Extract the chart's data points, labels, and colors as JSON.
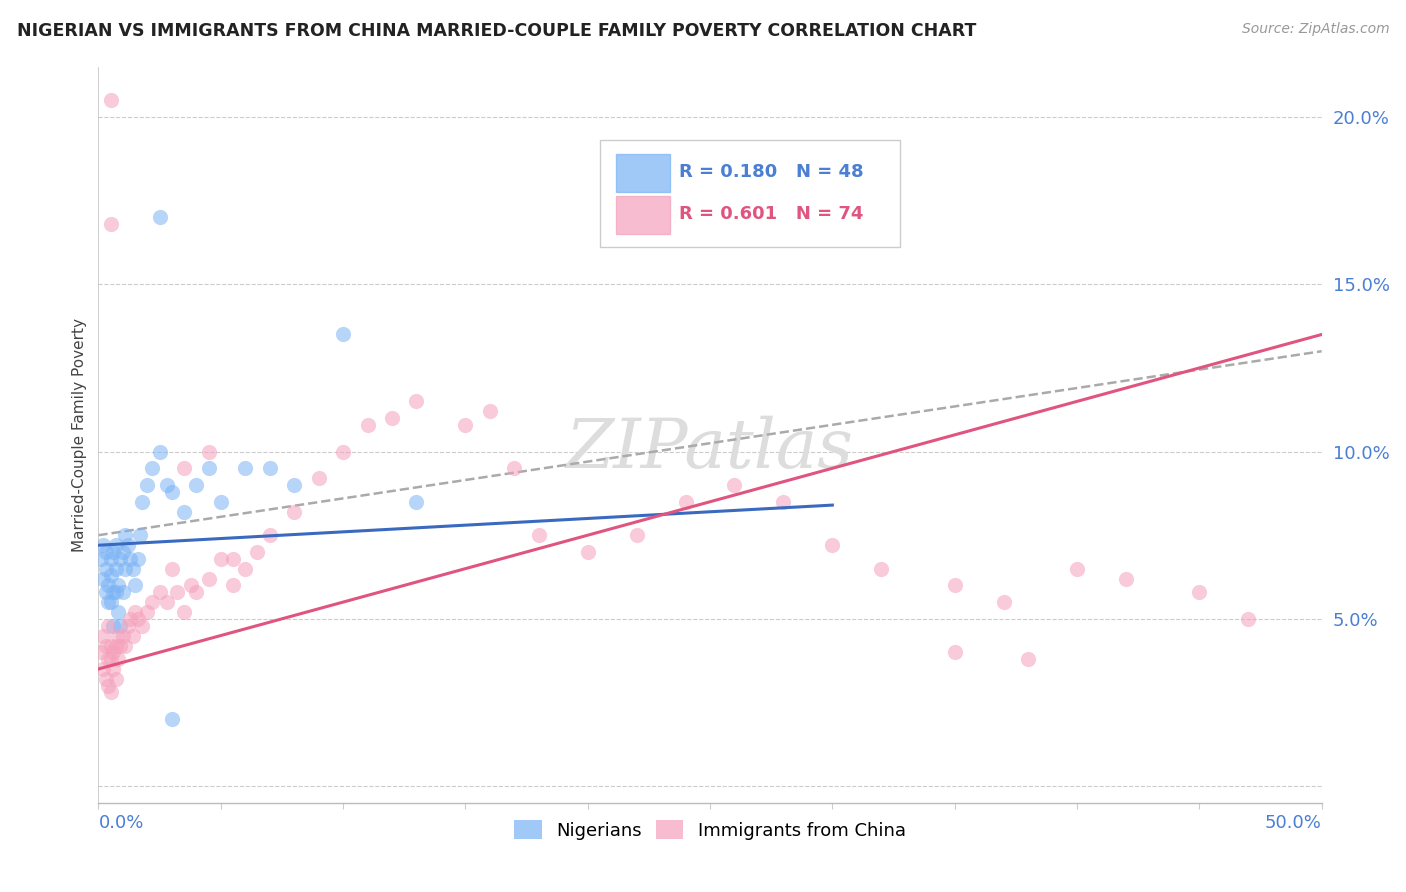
{
  "title": "NIGERIAN VS IMMIGRANTS FROM CHINA MARRIED-COUPLE FAMILY POVERTY CORRELATION CHART",
  "source": "Source: ZipAtlas.com",
  "ylabel": "Married-Couple Family Poverty",
  "xlim": [
    0.0,
    0.5
  ],
  "ylim": [
    -0.005,
    0.215
  ],
  "yticks": [
    0.0,
    0.05,
    0.1,
    0.15,
    0.2
  ],
  "ytick_labels": [
    "",
    "5.0%",
    "10.0%",
    "15.0%",
    "20.0%"
  ],
  "xticks": [
    0.0,
    0.05,
    0.1,
    0.15,
    0.2,
    0.25,
    0.3,
    0.35,
    0.4,
    0.45,
    0.5
  ],
  "nigerian_color": "#7ab3f5",
  "china_color": "#f5a0bb",
  "nig_line_color": "#3a6abf",
  "china_line_color": "#e05580",
  "dash_line_color": "#aaaaaa",
  "watermark": "ZIPatlas",
  "background_color": "#ffffff",
  "grid_color": "#cccccc",
  "ytick_color": "#4a7fd4",
  "xtick_color": "#4a7fd4",
  "nigerian_x": [
    0.001,
    0.002,
    0.002,
    0.003,
    0.003,
    0.003,
    0.004,
    0.004,
    0.005,
    0.005,
    0.005,
    0.006,
    0.006,
    0.006,
    0.007,
    0.007,
    0.007,
    0.008,
    0.008,
    0.009,
    0.009,
    0.01,
    0.01,
    0.011,
    0.011,
    0.012,
    0.013,
    0.014,
    0.015,
    0.016,
    0.017,
    0.018,
    0.02,
    0.022,
    0.025,
    0.028,
    0.03,
    0.035,
    0.04,
    0.045,
    0.05,
    0.06,
    0.07,
    0.08,
    0.1,
    0.13,
    0.025,
    0.03
  ],
  "nigerian_y": [
    0.068,
    0.072,
    0.062,
    0.065,
    0.07,
    0.058,
    0.06,
    0.055,
    0.063,
    0.068,
    0.055,
    0.07,
    0.058,
    0.048,
    0.065,
    0.072,
    0.058,
    0.06,
    0.052,
    0.068,
    0.048,
    0.07,
    0.058,
    0.075,
    0.065,
    0.072,
    0.068,
    0.065,
    0.06,
    0.068,
    0.075,
    0.085,
    0.09,
    0.095,
    0.1,
    0.09,
    0.088,
    0.082,
    0.09,
    0.095,
    0.085,
    0.095,
    0.095,
    0.09,
    0.135,
    0.085,
    0.17,
    0.02
  ],
  "china_x": [
    0.001,
    0.002,
    0.002,
    0.003,
    0.003,
    0.004,
    0.004,
    0.004,
    0.005,
    0.005,
    0.005,
    0.006,
    0.006,
    0.007,
    0.007,
    0.008,
    0.008,
    0.009,
    0.01,
    0.011,
    0.012,
    0.013,
    0.014,
    0.015,
    0.016,
    0.018,
    0.02,
    0.022,
    0.025,
    0.028,
    0.03,
    0.032,
    0.035,
    0.038,
    0.04,
    0.045,
    0.05,
    0.055,
    0.06,
    0.065,
    0.07,
    0.08,
    0.09,
    0.1,
    0.11,
    0.12,
    0.13,
    0.15,
    0.16,
    0.17,
    0.18,
    0.2,
    0.22,
    0.24,
    0.26,
    0.28,
    0.3,
    0.32,
    0.35,
    0.37,
    0.4,
    0.42,
    0.45,
    0.47,
    0.035,
    0.045,
    0.055,
    0.005,
    0.005,
    0.25,
    0.28,
    0.3,
    0.35,
    0.38
  ],
  "china_y": [
    0.04,
    0.045,
    0.035,
    0.042,
    0.032,
    0.048,
    0.038,
    0.03,
    0.042,
    0.038,
    0.028,
    0.04,
    0.035,
    0.042,
    0.032,
    0.045,
    0.038,
    0.042,
    0.045,
    0.042,
    0.048,
    0.05,
    0.045,
    0.052,
    0.05,
    0.048,
    0.052,
    0.055,
    0.058,
    0.055,
    0.065,
    0.058,
    0.052,
    0.06,
    0.058,
    0.062,
    0.068,
    0.06,
    0.065,
    0.07,
    0.075,
    0.082,
    0.092,
    0.1,
    0.108,
    0.11,
    0.115,
    0.108,
    0.112,
    0.095,
    0.075,
    0.07,
    0.075,
    0.085,
    0.09,
    0.085,
    0.072,
    0.065,
    0.06,
    0.055,
    0.065,
    0.062,
    0.058,
    0.05,
    0.095,
    0.1,
    0.068,
    0.205,
    0.168,
    0.168,
    0.168,
    0.17,
    0.04,
    0.038
  ]
}
